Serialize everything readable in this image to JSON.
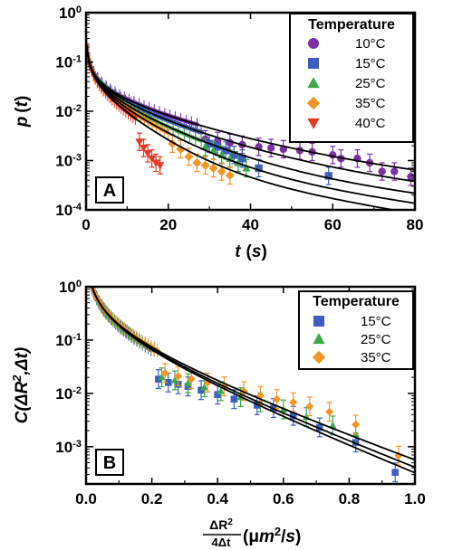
{
  "chart_data": [
    {
      "panel": "A",
      "type": "scatter",
      "panel_label": "A",
      "xlabel_symbol": "t",
      "xlabel_unit": "s",
      "ylabel_symbol": "p",
      "ylabel_arg": "t",
      "xlim": [
        0,
        80
      ],
      "ylim": [
        0.0001,
        1
      ],
      "y_scale": "log",
      "x_ticks": [
        "0",
        "20",
        "40",
        "60",
        "80"
      ],
      "y_ticks": [
        {
          "base": "10",
          "exp": "0",
          "value": 1
        },
        {
          "base": "10",
          "exp": "-1",
          "value": 0.1
        },
        {
          "base": "10",
          "exp": "-2",
          "value": 0.01
        },
        {
          "base": "10",
          "exp": "-3",
          "value": 0.001
        },
        {
          "base": "10",
          "exp": "-4",
          "value": 0.0001
        }
      ],
      "legend_title": "Temperature",
      "legend_position": "top-right",
      "series": [
        {
          "name": "10°C",
          "marker": "circle",
          "color": "#7b2fa0",
          "tau": 8.0,
          "x_end": 27,
          "x_max": 80,
          "points": [
            [
              29,
              0.0027
            ],
            [
              32,
              0.0025
            ],
            [
              35,
              0.0023
            ],
            [
              38,
              0.0021
            ],
            [
              42,
              0.0019
            ],
            [
              45,
              0.0018
            ],
            [
              48,
              0.0017
            ],
            [
              52,
              0.0016
            ],
            [
              55,
              0.0015
            ],
            [
              60,
              0.0013
            ],
            [
              62,
              0.0011
            ],
            [
              66,
              0.0011
            ],
            [
              69,
              0.0009
            ],
            [
              72,
              0.0006
            ],
            [
              75,
              0.0006
            ],
            [
              79,
              0.00047
            ]
          ]
        },
        {
          "name": "15°C",
          "marker": "square",
          "color": "#3f5cc0",
          "tau": 6.2,
          "x_end": 28,
          "x_max": 80,
          "points": [
            [
              30,
              0.0022
            ],
            [
              32,
              0.0019
            ],
            [
              34,
              0.0016
            ],
            [
              36,
              0.0013
            ],
            [
              38,
              0.0011
            ],
            [
              42,
              0.0007
            ],
            [
              59,
              0.00049
            ]
          ]
        },
        {
          "name": "25°C",
          "marker": "triangle",
          "color": "#3aa84a",
          "tau": 4.8,
          "x_end": 28,
          "x_max": 80,
          "points": [
            [
              29,
              0.0019
            ],
            [
              31,
              0.0016
            ],
            [
              33,
              0.0013
            ],
            [
              35,
              0.0011
            ],
            [
              37,
              0.0009
            ],
            [
              39,
              0.0007
            ]
          ]
        },
        {
          "name": "35°C",
          "marker": "diamond",
          "color": "#f29627",
          "tau": 3.9,
          "x_end": 20,
          "x_max": 80,
          "points": [
            [
              21,
              0.0022
            ],
            [
              23,
              0.0017
            ],
            [
              25,
              0.0012
            ],
            [
              27,
              0.0009
            ],
            [
              29,
              0.0008
            ],
            [
              31,
              0.0007
            ],
            [
              33,
              0.0006
            ],
            [
              35,
              0.0005
            ]
          ]
        },
        {
          "name": "40°C",
          "marker": "triangle-down",
          "color": "#e53a25",
          "tau": 3.2,
          "x_end": 12,
          "x_max": 80,
          "points": [
            [
              13,
              0.0024
            ],
            [
              14,
              0.0018
            ],
            [
              15,
              0.0014
            ],
            [
              16,
              0.0011
            ],
            [
              17,
              0.0009
            ],
            [
              18,
              0.0008
            ]
          ]
        }
      ]
    },
    {
      "panel": "B",
      "type": "scatter",
      "panel_label": "B",
      "xlabel_num": "ΔR",
      "xlabel_num_sup": "2",
      "xlabel_den": "4Δt",
      "xlabel_unit_pre": "(μ",
      "xlabel_unit_m": "m",
      "xlabel_unit_sup": "2",
      "xlabel_unit_post": "/",
      "xlabel_unit_s": "s",
      "xlabel_unit_close": ")",
      "ylabel_pre": "C(ΔR",
      "ylabel_sup": "2",
      "ylabel_post": ",Δt)",
      "xlim": [
        0,
        1
      ],
      "ylim": [
        0.0002,
        1
      ],
      "y_scale": "log",
      "x_ticks": [
        "0.0",
        "0.2",
        "0.4",
        "0.6",
        "0.8",
        "1.0"
      ],
      "y_ticks": [
        {
          "base": "10",
          "exp": "0",
          "value": 1
        },
        {
          "base": "10",
          "exp": "-1",
          "value": 0.1
        },
        {
          "base": "10",
          "exp": "-2",
          "value": 0.01
        },
        {
          "base": "10",
          "exp": "-3",
          "value": 0.001
        }
      ],
      "legend_title": "Temperature",
      "legend_position": "top-right",
      "series": [
        {
          "name": "15°C",
          "marker": "square",
          "color": "#3f5cc0",
          "tau": 0.205,
          "x_end": 0.2,
          "x_max": 1.0,
          "points": [
            [
              0.22,
              0.0185
            ],
            [
              0.25,
              0.016
            ],
            [
              0.28,
              0.0148
            ],
            [
              0.31,
              0.0135
            ],
            [
              0.35,
              0.0115
            ],
            [
              0.4,
              0.0095
            ],
            [
              0.45,
              0.0078
            ],
            [
              0.52,
              0.006
            ],
            [
              0.57,
              0.0053
            ],
            [
              0.63,
              0.0038
            ],
            [
              0.71,
              0.0023
            ],
            [
              0.82,
              0.0012
            ],
            [
              0.94,
              0.00033
            ]
          ]
        },
        {
          "name": "25°C",
          "marker": "triangle",
          "color": "#3aa84a",
          "tau": 0.215,
          "x_end": 0.21,
          "x_max": 1.0,
          "points": [
            [
              0.23,
              0.02
            ],
            [
              0.27,
              0.0175
            ],
            [
              0.31,
              0.0155
            ],
            [
              0.36,
              0.013
            ],
            [
              0.41,
              0.011
            ],
            [
              0.47,
              0.0085
            ],
            [
              0.53,
              0.0068
            ],
            [
              0.6,
              0.005
            ],
            [
              0.67,
              0.0036
            ],
            [
              0.75,
              0.0025
            ],
            [
              0.82,
              0.0017
            ]
          ]
        },
        {
          "name": "35°C",
          "marker": "diamond",
          "color": "#f29627",
          "tau": 0.23,
          "x_end": 0.22,
          "x_max": 1.0,
          "points": [
            [
              0.24,
              0.024
            ],
            [
              0.28,
              0.021
            ],
            [
              0.32,
              0.0185
            ],
            [
              0.37,
              0.016
            ],
            [
              0.42,
              0.0135
            ],
            [
              0.48,
              0.011
            ],
            [
              0.53,
              0.009
            ],
            [
              0.58,
              0.0078
            ],
            [
              0.63,
              0.0068
            ],
            [
              0.68,
              0.0057
            ],
            [
              0.74,
              0.0045
            ],
            [
              0.82,
              0.0026
            ],
            [
              0.95,
              0.00068
            ]
          ]
        }
      ]
    }
  ]
}
